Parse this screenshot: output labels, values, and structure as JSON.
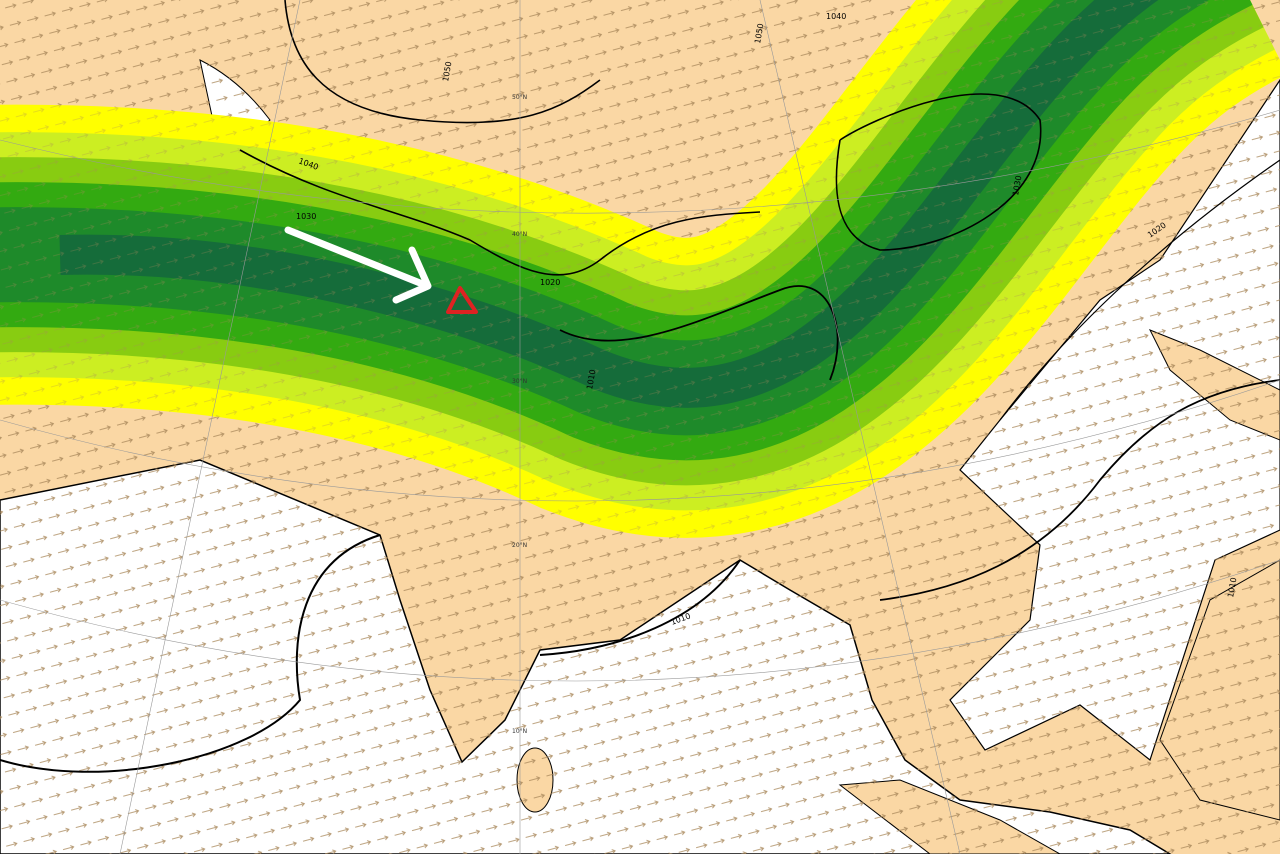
{
  "map": {
    "isobar_labels": [
      "1040",
      "1050",
      "1050",
      "1040",
      "1030",
      "1020",
      "1010",
      "1030",
      "1020",
      "1010",
      "1010"
    ],
    "latitude_labels": [
      "50°N",
      "40°N",
      "30°N",
      "20°N",
      "10°N"
    ]
  }
}
